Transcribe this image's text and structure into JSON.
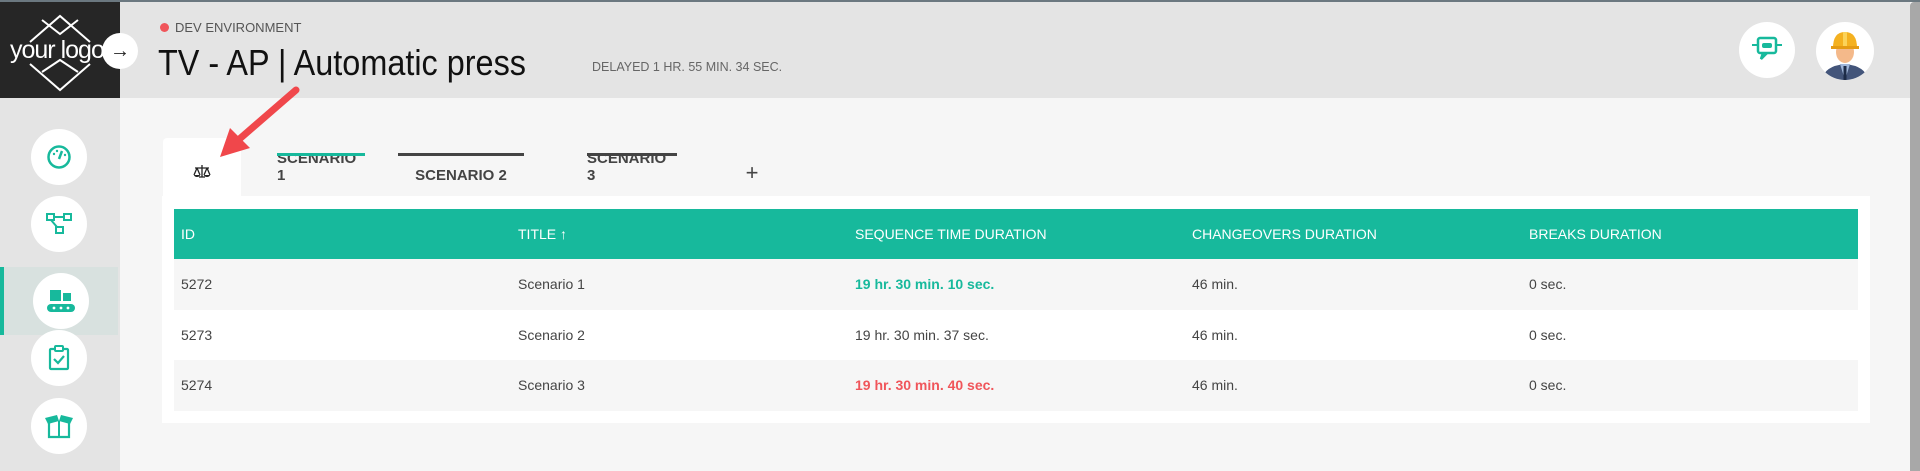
{
  "header": {
    "environment": "DEV ENVIRONMENT",
    "title": "TV - AP | Automatic press",
    "delay": "DELAYED 1 HR. 55 MIN. 34 SEC."
  },
  "logo": {
    "text": "your logo"
  },
  "sidebar": {
    "items": [
      {
        "icon": "gauge-icon"
      },
      {
        "icon": "flow-icon"
      },
      {
        "icon": "conveyor-icon",
        "active": true
      },
      {
        "icon": "clipboard-check-icon"
      },
      {
        "icon": "box-open-icon"
      }
    ]
  },
  "tabs": [
    {
      "label": "",
      "icon": "balance-scale-icon",
      "active": true
    },
    {
      "label": "SCENARIO 1"
    },
    {
      "label": "SCENARIO 2"
    },
    {
      "label": "SCENARIO 3"
    },
    {
      "label": "+"
    }
  ],
  "table": {
    "columns": [
      "ID",
      "TITLE",
      "SEQUENCE TIME DURATION",
      "CHANGEOVERS DURATION",
      "BREAKS DURATION"
    ],
    "sort": "ascending",
    "rows": [
      [
        "5272",
        "Scenario 1",
        "19 hr. 30 min. 10 sec.",
        "46 min.",
        "0 sec."
      ],
      [
        "5273",
        "Scenario 2",
        "19 hr. 30 min. 37 sec.",
        "46 min.",
        "0 sec."
      ],
      [
        "5274",
        "Scenario 3",
        "19 hr. 30 min. 40 sec.",
        "46 min.",
        "0 sec."
      ]
    ]
  },
  "colors": {
    "accent": "#17b99c",
    "danger": "#f0555a",
    "header_bg": "#e4e4e4"
  }
}
